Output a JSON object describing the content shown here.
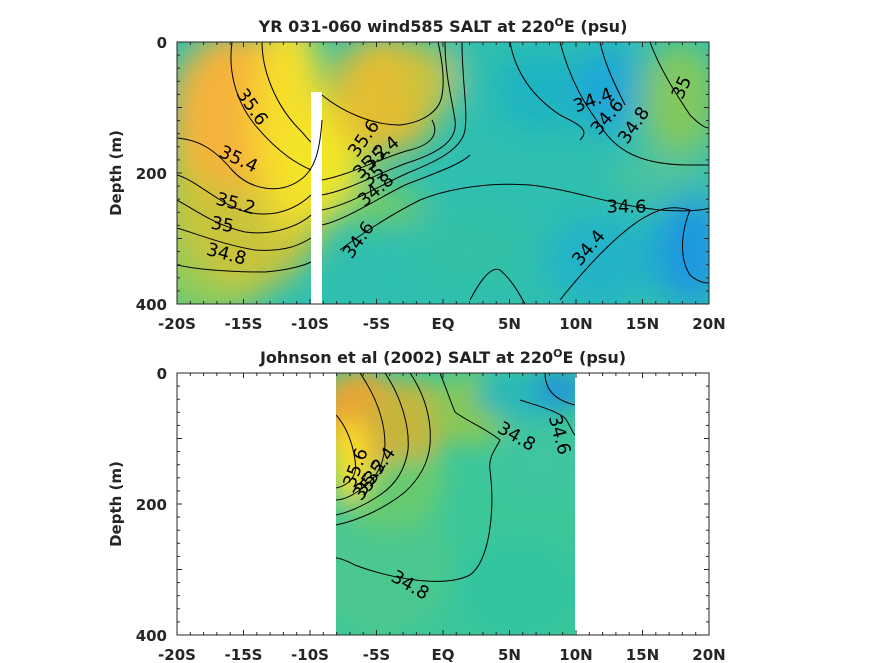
{
  "chart_data": [
    {
      "type": "heatmap",
      "title": "YR 031-060 wind585 SALT at 220",
      "title_superscript": "O",
      "title_suffix": "E (psu)",
      "ylabel": "Depth (m)",
      "xlabel": "",
      "xlim": [
        -20,
        20
      ],
      "ylim": [
        0,
        400
      ],
      "y_reversed": true,
      "x_tick_values": [
        -20,
        -15,
        -10,
        -5,
        0,
        5,
        10,
        15,
        20
      ],
      "x_tick_labels": [
        "-20S",
        "-15S",
        "-10S",
        "-5S",
        "EQ",
        "5N",
        "10N",
        "15N",
        "20N"
      ],
      "y_tick_values": [
        0,
        200,
        400
      ],
      "y_tick_labels": [
        "0",
        "200",
        "400"
      ],
      "data_x_range": [
        -20,
        20
      ],
      "contour_labels": [
        {
          "text": "35.6",
          "x": -14.4,
          "y": 100,
          "angle": 55
        },
        {
          "text": "35.4",
          "x": -15.4,
          "y": 180,
          "angle": 25
        },
        {
          "text": "35.2",
          "x": -15.6,
          "y": 248,
          "angle": 15
        },
        {
          "text": "35",
          "x": -16.6,
          "y": 280,
          "angle": 10
        },
        {
          "text": "34.8",
          "x": -16.3,
          "y": 325,
          "angle": 15
        },
        {
          "text": "35.6",
          "x": -5.9,
          "y": 148,
          "angle": -55
        },
        {
          "text": "35.4",
          "x": -4.6,
          "y": 170,
          "angle": -40
        },
        {
          "text": "35.2",
          "x": -5.4,
          "y": 183,
          "angle": -45
        },
        {
          "text": "35",
          "x": -5.2,
          "y": 205,
          "angle": -40
        },
        {
          "text": "34.8",
          "x": -5.0,
          "y": 227,
          "angle": -40
        },
        {
          "text": "34.6",
          "x": -6.3,
          "y": 303,
          "angle": -55
        },
        {
          "text": "34.4",
          "x": 11.3,
          "y": 90,
          "angle": -20
        },
        {
          "text": "34.6",
          "x": 12.4,
          "y": 115,
          "angle": -50
        },
        {
          "text": "34.8",
          "x": 14.4,
          "y": 128,
          "angle": -55
        },
        {
          "text": "35",
          "x": 18.0,
          "y": 70,
          "angle": -65
        },
        {
          "text": "34.6",
          "x": 13.8,
          "y": 253,
          "angle": 0
        },
        {
          "text": "34.4",
          "x": 11.0,
          "y": 315,
          "angle": -50
        }
      ]
    },
    {
      "type": "heatmap",
      "title": "Johnson et al (2002) SALT at 220",
      "title_superscript": "O",
      "title_suffix": "E (psu)",
      "ylabel": "Depth (m)",
      "xlabel": "",
      "xlim": [
        -20,
        20
      ],
      "ylim": [
        0,
        400
      ],
      "y_reversed": true,
      "x_tick_values": [
        -20,
        -15,
        -10,
        -5,
        0,
        5,
        10,
        15,
        20
      ],
      "x_tick_labels": [
        "-20S",
        "-15S",
        "-10S",
        "-5S",
        "EQ",
        "5N",
        "10N",
        "15N",
        "20N"
      ],
      "y_tick_values": [
        0,
        200,
        400
      ],
      "y_tick_labels": [
        "0",
        "200",
        "400"
      ],
      "data_x_range": [
        -8,
        10
      ],
      "contour_labels": [
        {
          "text": "35.6",
          "x": -6.5,
          "y": 145,
          "angle": -70
        },
        {
          "text": "35.4",
          "x": -4.7,
          "y": 142,
          "angle": -55
        },
        {
          "text": "35.2",
          "x": -5.4,
          "y": 160,
          "angle": -55
        },
        {
          "text": "35",
          "x": -5.9,
          "y": 178,
          "angle": -50
        },
        {
          "text": "34.8",
          "x": 5.5,
          "y": 98,
          "angle": 30
        },
        {
          "text": "34.6",
          "x": 8.7,
          "y": 95,
          "angle": 75
        },
        {
          "text": "34.8",
          "x": -2.5,
          "y": 325,
          "angle": 30
        }
      ]
    }
  ]
}
